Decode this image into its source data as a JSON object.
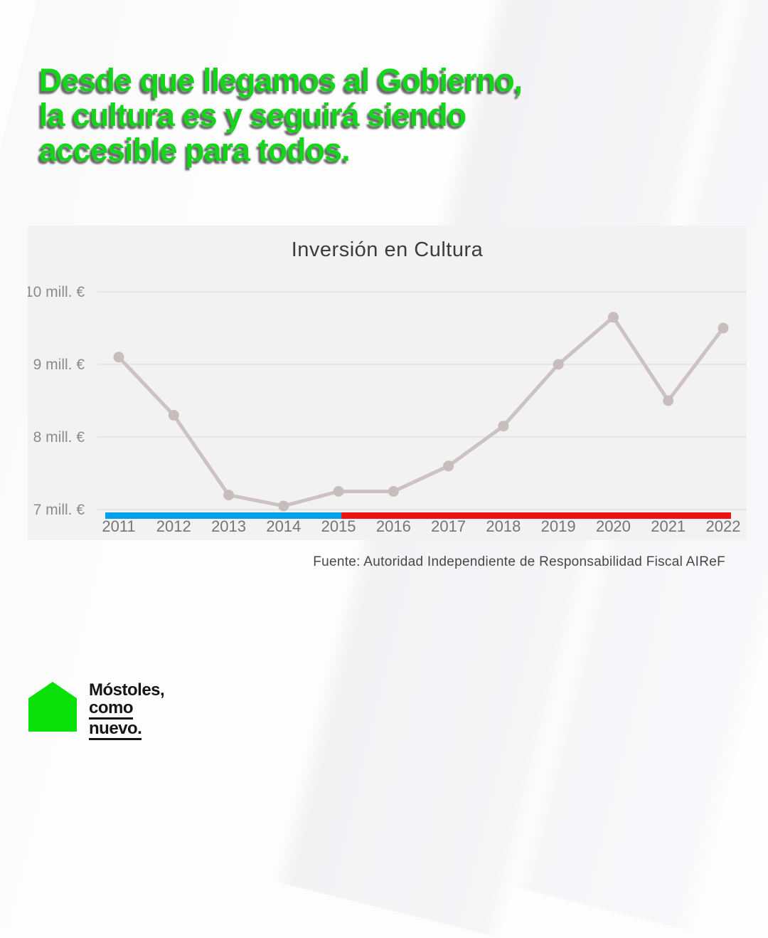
{
  "headline": {
    "lines": [
      "Desde que llegamos al Gobierno,",
      "la cultura es y seguirá siendo",
      "accesible para todos."
    ],
    "color": "#14d41c"
  },
  "chart_data": {
    "type": "line",
    "title": "Inversión en Cultura",
    "x": [
      2011,
      2012,
      2013,
      2014,
      2015,
      2016,
      2017,
      2018,
      2019,
      2020,
      2021,
      2022
    ],
    "values": [
      9.1,
      8.3,
      7.2,
      7.05,
      7.25,
      7.25,
      7.6,
      8.15,
      9.0,
      9.65,
      8.5,
      9.5
    ],
    "unit": "mill. €",
    "ylim": [
      6.9,
      10.15
    ],
    "yticks": [
      {
        "value": 7,
        "label": "7 mill. €"
      },
      {
        "value": 8,
        "label": "8 mill. €"
      },
      {
        "value": 9,
        "label": "9 mill. €"
      },
      {
        "value": 10,
        "label": "10 mill. €"
      }
    ],
    "grid": true,
    "legend": "none",
    "line_color": "#ccc2c2",
    "point_color": "#c8bdbd",
    "grid_color": "#e6e5e5",
    "ytick_color": "#8b8b8b",
    "xtick_color": "#757575",
    "timeline_segments": [
      {
        "from_year": 2011,
        "to_year": 2015,
        "color": "#009FEC"
      },
      {
        "from_year": 2015,
        "to_year": 2022,
        "color": "#EE1111"
      }
    ]
  },
  "source": "Fuente: Autoridad Independiente de Responsabilidad Fiscal AIReF",
  "logo": {
    "line1": "Móstoles,",
    "line2": "como",
    "line3": "nuevo.",
    "house_color": "#0ae00a"
  }
}
